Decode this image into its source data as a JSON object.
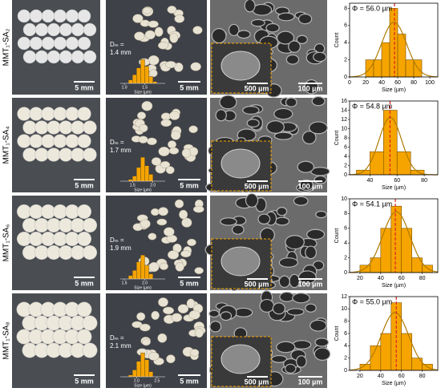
{
  "rows": [
    {
      "label": "MMT₁-SA₂",
      "scale1": "5 mm",
      "scale2": "5 mm",
      "scale3": "500 µm",
      "scale4": "100 µm",
      "dm_label": "Dₘ =",
      "dm_value": "1.4 mm",
      "mini": {
        "bins": [
          1.1,
          1.2,
          1.3,
          1.4,
          1.5,
          1.6,
          1.7,
          1.8
        ],
        "counts": [
          2,
          5,
          9,
          14,
          10,
          4,
          1
        ],
        "xlim": [
          0.9,
          2.0
        ],
        "ylim": [
          0,
          15
        ],
        "xticks": [
          {
            "value": 1,
            "label": "1.0"
          },
          1.5
        ],
        "xlabel": "Size (µm)"
      },
      "hist": {
        "mean": 56.0,
        "mean_label": "Φ = 56.0 µm",
        "bins": [
          20,
          30,
          40,
          50,
          60,
          70,
          80,
          90
        ],
        "counts": [
          2,
          2,
          4,
          8,
          5,
          2,
          2
        ],
        "xlim": [
          0,
          110
        ],
        "ylim": [
          0,
          8.6
        ],
        "xticks": [
          0,
          20,
          40,
          60,
          80,
          100
        ],
        "yticks": [
          0,
          2,
          4,
          6,
          8
        ],
        "xlabel": "Size (µm)",
        "ylabel": "Count"
      }
    },
    {
      "label": "MMT₁-SA₄",
      "scale1": "5 mm",
      "scale2": "5 mm",
      "scale3": "500 µm",
      "scale4": "100 µm",
      "dm_label": "Dₘ =",
      "dm_value": "1.7 mm",
      "mini": {
        "bins": [
          1.4,
          1.5,
          1.6,
          1.7,
          1.8,
          1.9,
          2.0
        ],
        "counts": [
          1,
          3,
          8,
          14,
          9,
          4
        ],
        "xlim": [
          1.2,
          2.3
        ],
        "ylim": [
          0,
          15
        ],
        "xticks": [
          1.5,
          {
            "value": 2,
            "label": "2.0"
          }
        ],
        "xlabel": "Size (µm)"
      },
      "hist": {
        "mean": 54.8,
        "mean_label": "Φ = 54.8 µm",
        "bins": [
          30,
          40,
          50,
          60,
          70,
          80
        ],
        "counts": [
          1,
          5,
          14,
          5,
          1
        ],
        "xlim": [
          25,
          90
        ],
        "ylim": [
          0,
          16
        ],
        "xticks": [
          40,
          60,
          80
        ],
        "yticks": [
          0,
          2,
          4,
          6,
          8,
          10,
          12,
          14,
          16
        ],
        "xlabel": "Size (µm)",
        "ylabel": "Count"
      }
    },
    {
      "label": "MMT₁-SA₆",
      "scale1": "5 mm",
      "scale2": "5 mm",
      "scale3": "500 µm",
      "scale4": "100 µm",
      "dm_label": "Dₘ =",
      "dm_value": "1.9 mm",
      "mini": {
        "bins": [
          1.6,
          1.7,
          1.8,
          1.9,
          2.0,
          2.1,
          2.2
        ],
        "counts": [
          2,
          5,
          10,
          14,
          8,
          3
        ],
        "xlim": [
          1.4,
          2.5
        ],
        "ylim": [
          0,
          15
        ],
        "xticks": [
          1.5,
          {
            "value": 2,
            "label": "2.0"
          }
        ],
        "xlabel": "Size (µm)"
      },
      "hist": {
        "mean": 54.1,
        "mean_label": "Φ = 54.1 µm",
        "bins": [
          20,
          30,
          40,
          50,
          60,
          70,
          80,
          90
        ],
        "counts": [
          1,
          2,
          6,
          9,
          6,
          2,
          1
        ],
        "xlim": [
          10,
          95
        ],
        "ylim": [
          0,
          10
        ],
        "xticks": [
          20,
          40,
          60,
          80
        ],
        "yticks": [
          0,
          2,
          4,
          6,
          8,
          10
        ],
        "xlabel": "Size (µm)",
        "ylabel": "Count"
      }
    },
    {
      "label": "MMT₁-SA₈",
      "scale1": "5 mm",
      "scale2": "5 mm",
      "scale3": "500 µm",
      "scale4": "100 µm",
      "dm_label": "Dₘ =",
      "dm_value": "2.1 mm",
      "mini": {
        "bins": [
          1.8,
          1.9,
          2.0,
          2.1,
          2.2,
          2.3,
          2.4
        ],
        "counts": [
          1,
          4,
          9,
          14,
          10,
          3
        ],
        "xlim": [
          1.6,
          2.7
        ],
        "ylim": [
          0,
          15
        ],
        "xticks": [
          {
            "value": 2,
            "label": "2.0"
          },
          2.5
        ],
        "xlabel": "Size (µm)"
      },
      "hist": {
        "mean": 55.0,
        "mean_label": "Φ = 55.0 µm",
        "bins": [
          20,
          30,
          40,
          50,
          60,
          70,
          80,
          90
        ],
        "counts": [
          1,
          4,
          6,
          11,
          6,
          2,
          1
        ],
        "xlim": [
          10,
          95
        ],
        "ylim": [
          0,
          12
        ],
        "xticks": [
          20,
          40,
          60,
          80
        ],
        "yticks": [
          0,
          2,
          4,
          6,
          8,
          10,
          12
        ],
        "xlabel": "Size (µm)",
        "ylabel": "Count"
      }
    }
  ]
}
